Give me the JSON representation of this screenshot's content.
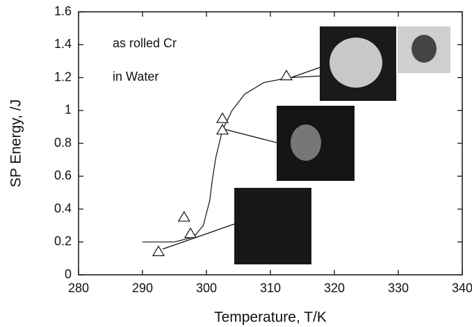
{
  "chart_data": {
    "type": "scatter",
    "xlabel": "Temperature, T/K",
    "ylabel": "SP Energy, /J",
    "annotations": [
      "as rolled Cr",
      "in Water"
    ],
    "xlim": [
      280,
      340
    ],
    "xticks": [
      280,
      290,
      300,
      310,
      320,
      330,
      340
    ],
    "ylim": [
      0,
      1.6
    ],
    "yticks": [
      0,
      0.2,
      0.4,
      0.6,
      0.8,
      1,
      1.2,
      1.4,
      1.6
    ],
    "color": "#111111",
    "x": [
      292.5,
      296.5,
      297.5,
      302.5,
      302.5,
      312.5
    ],
    "values": [
      0.14,
      0.35,
      0.25,
      0.95,
      0.88,
      1.21
    ],
    "fit": {
      "x": [
        290,
        295,
        298,
        299.5,
        300.5,
        301,
        301.5,
        302.5,
        304,
        306,
        309,
        313,
        318
      ],
      "values": [
        0.2,
        0.2,
        0.23,
        0.3,
        0.45,
        0.6,
        0.72,
        0.88,
        1.0,
        1.1,
        1.17,
        1.2,
        1.21
      ]
    }
  }
}
